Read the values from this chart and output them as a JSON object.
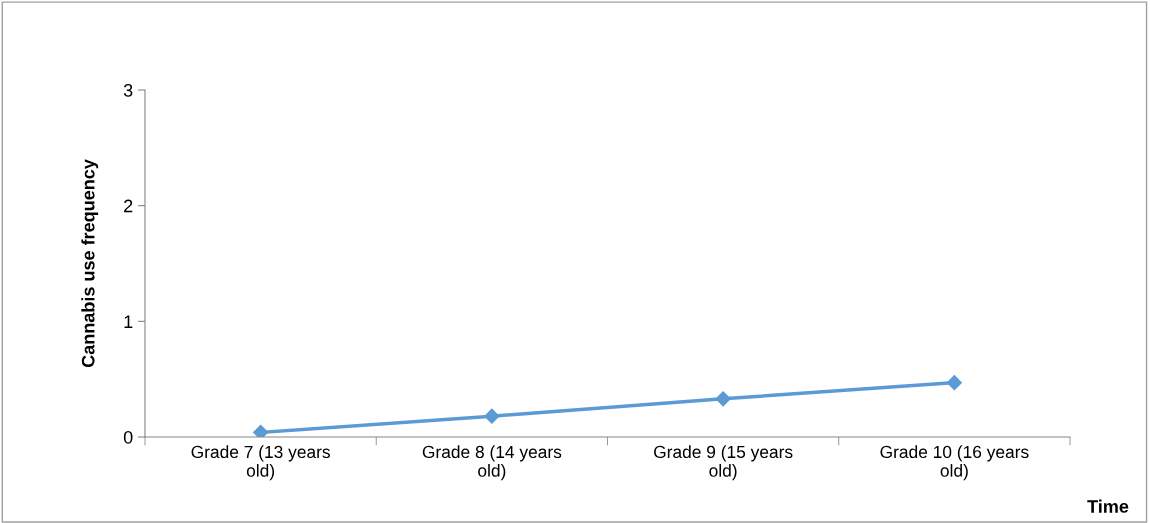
{
  "chart_data": {
    "type": "line",
    "xlabel": "Time",
    "ylabel": "Cannabis use frequency",
    "categories": [
      "Grade 7 (13 years old)",
      "Grade 8 (14 years old)",
      "Grade 9 (15 years old)",
      "Grade 10 (16 years old)"
    ],
    "series": [
      {
        "color": "#5b9bd5",
        "values": [
          0.04,
          0.18,
          0.33,
          0.47
        ]
      }
    ],
    "ylim": [
      0,
      3
    ],
    "yticks": [
      0,
      1,
      2,
      3
    ],
    "marker": "diamond",
    "line_style": "solid",
    "grid": false,
    "legend": false
  }
}
